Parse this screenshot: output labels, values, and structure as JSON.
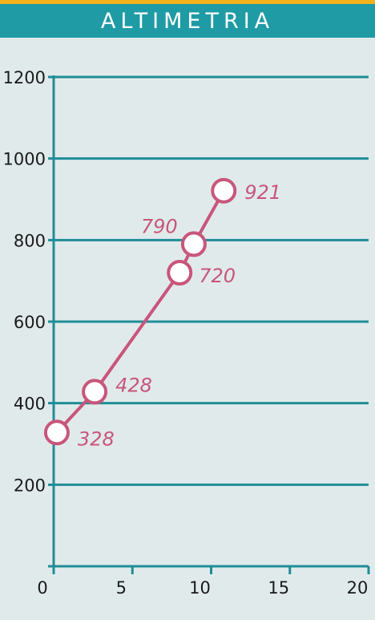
{
  "header": {
    "title": "ALTIMETRIA"
  },
  "colors": {
    "background": "#e1eaeb",
    "header": "#1f9ba6",
    "accent_bar": "#f2b21c",
    "grid": "#1f8d97",
    "series": "#c8567a",
    "marker_fill": "#ffffff",
    "axis_text": "#1a1a1a"
  },
  "chart_data": {
    "type": "line",
    "title": "ALTIMETRIA",
    "xlabel": "",
    "ylabel": "",
    "xlim": [
      0,
      20
    ],
    "ylim": [
      0,
      1200
    ],
    "x_ticks": [
      0,
      5,
      10,
      15,
      20
    ],
    "y_ticks": [
      200,
      400,
      600,
      800,
      1000,
      1200
    ],
    "grid": true,
    "series": [
      {
        "points": [
          {
            "x": 0.2,
            "y": 328,
            "label": "328"
          },
          {
            "x": 2.6,
            "y": 428,
            "label": "428"
          },
          {
            "x": 8.0,
            "y": 720,
            "label": "720"
          },
          {
            "x": 8.9,
            "y": 790,
            "label": "790"
          },
          {
            "x": 10.8,
            "y": 921,
            "label": "921"
          }
        ]
      }
    ]
  }
}
